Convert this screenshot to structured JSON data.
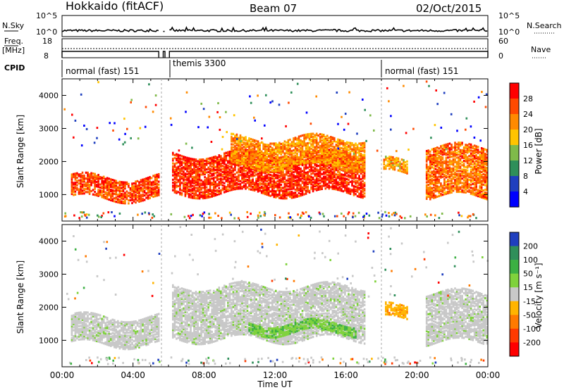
{
  "header": {
    "station": "Hokkaido (fitACF)",
    "beam": "Beam 07",
    "date": "02/Oct/2015"
  },
  "param_panel": {
    "nsky_label": "N.Sky",
    "nsky_ticks": [
      "10^5",
      "10^0"
    ],
    "nsearch_label": "N.Search",
    "nsearch_ticks": [
      "10^5",
      "10^0"
    ],
    "freq_label": "Freq.",
    "freq_unit": "[MHz]",
    "freq_ticks": [
      "18",
      "8"
    ],
    "nave_label": "Nave",
    "nave_ticks": [
      "60",
      "0"
    ],
    "cpid_label": "CPID",
    "cpid_segments": [
      {
        "label": "normal (fast) 151",
        "start": 0.0,
        "end": 5.5
      },
      {
        "label": "themis 3300",
        "start": 6.05,
        "end": 18.05
      },
      {
        "label": "normal (fast) 151",
        "start": 18.05,
        "end": 24.0
      }
    ]
  },
  "power_colorbar": {
    "label": "Power [dB]",
    "ticks": [
      "28",
      "24",
      "20",
      "16",
      "12",
      "8",
      "4"
    ],
    "colors": [
      "#ff0000",
      "#ff4a00",
      "#ff8a00",
      "#ffc400",
      "#7fba4a",
      "#2f8f5a",
      "#1f3fbf",
      "#0000ff"
    ]
  },
  "velocity_colorbar": {
    "label": "Velocity [m s⁻¹]",
    "ticks": [
      "200",
      "100",
      "50",
      "15",
      "-15",
      "-50",
      "-100",
      "-200"
    ],
    "colors": [
      "#1f3fbf",
      "#2f8f5a",
      "#3cb043",
      "#7fd23c",
      "#c8c8c8",
      "#ffb400",
      "#ff7a00",
      "#ff3a00",
      "#ff0000"
    ]
  },
  "chart_data": [
    {
      "type": "heatmap",
      "panel": "power",
      "xlabel": "Time UT",
      "ylabel": "Slant Range [km]",
      "xlim": [
        0,
        24
      ],
      "ylim": [
        200,
        4500
      ],
      "xticks": [
        "00:00",
        "04:00",
        "08:00",
        "12:00",
        "16:00",
        "20:00",
        "00:00"
      ],
      "yticks": [
        "1000",
        "2000",
        "3000",
        "4000"
      ],
      "regions": [
        {
          "t0": 0.5,
          "t1": 5.4,
          "r0": 850,
          "r1": 1500,
          "power_db": 24
        },
        {
          "t0": 6.2,
          "t1": 17.0,
          "r0": 1000,
          "r1": 2200,
          "power_db": 26
        },
        {
          "t0": 9.5,
          "t1": 17.0,
          "r0": 1800,
          "r1": 2700,
          "power_db": 20
        },
        {
          "t0": 18.1,
          "t1": 19.5,
          "r0": 1600,
          "r1": 2000,
          "power_db": 18
        },
        {
          "t0": 20.5,
          "t1": 24.0,
          "r0": 900,
          "r1": 2400,
          "power_db": 22
        }
      ]
    },
    {
      "type": "heatmap",
      "panel": "velocity",
      "xlabel": "Time UT",
      "ylabel": "Slant Range [km]",
      "xlim": [
        0,
        24
      ],
      "ylim": [
        200,
        4500
      ],
      "xticks": [
        "00:00",
        "04:00",
        "08:00",
        "12:00",
        "16:00",
        "20:00",
        "00:00"
      ],
      "yticks": [
        "1000",
        "2000",
        "3000",
        "4000"
      ],
      "regions": [
        {
          "t0": 0.5,
          "t1": 5.4,
          "r0": 850,
          "r1": 1700,
          "velocity": 0
        },
        {
          "t0": 6.2,
          "t1": 17.0,
          "r0": 1000,
          "r1": 2600,
          "velocity": 0
        },
        {
          "t0": 10.5,
          "t1": 16.5,
          "r0": 1200,
          "r1": 1500,
          "velocity": 40
        },
        {
          "t0": 18.2,
          "t1": 19.5,
          "r0": 1600,
          "r1": 2000,
          "velocity": -40
        },
        {
          "t0": 20.5,
          "t1": 24.0,
          "r0": 900,
          "r1": 2400,
          "velocity": 0
        }
      ]
    }
  ]
}
